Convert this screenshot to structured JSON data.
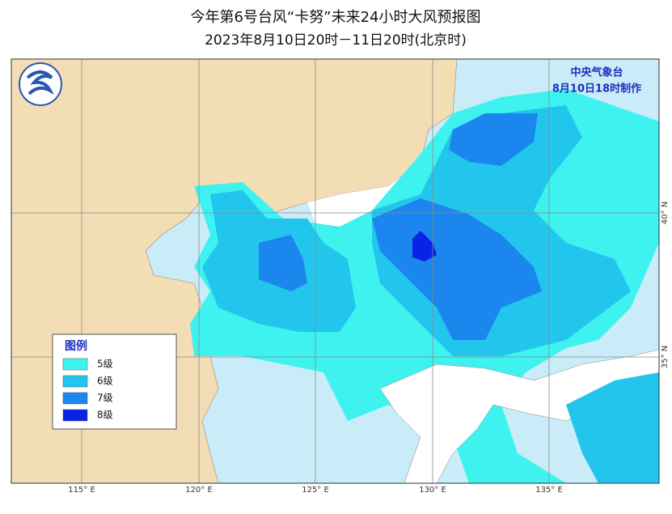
{
  "title": "今年第6号台风“卡努”未来24小时大风预报图",
  "subtitle": "2023年8月10日20时－11日20时(北京时)",
  "agency": "中央气象台",
  "issued": "8月10日18时制作",
  "legend": {
    "title": "图例",
    "items": [
      {
        "label": "5级",
        "color": "#3ef2f0"
      },
      {
        "label": "6级",
        "color": "#22c6ec"
      },
      {
        "label": "7级",
        "color": "#1a86ee"
      },
      {
        "label": "8级",
        "color": "#0a22e6"
      }
    ]
  },
  "longitude_labels": [
    "115° E",
    "120° E",
    "125° E",
    "130° E",
    "135° E"
  ],
  "latitude_labels": [
    "40° N",
    "35° N"
  ]
}
